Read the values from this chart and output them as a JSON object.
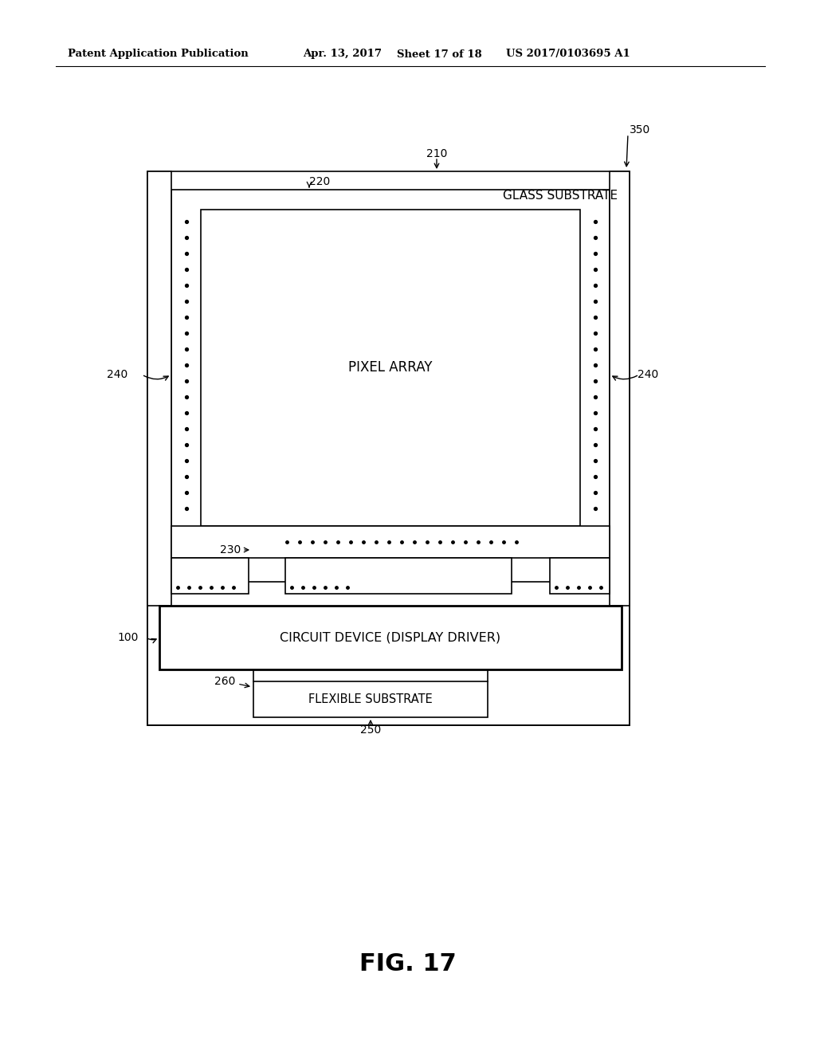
{
  "bg_color": "#ffffff",
  "header_left": "Patent Application Publication",
  "header_mid1": "Apr. 13, 2017",
  "header_mid2": "Sheet 17 of 18",
  "header_right": "US 2017/0103695 A1",
  "fig_label": "FIG. 17",
  "lbl_glass": "GLASS SUBSTRATE",
  "lbl_pixel": "PIXEL ARRAY",
  "lbl_circuit": "CIRCUIT DEVICE (DISPLAY DRIVER)",
  "lbl_flexible": "FLEXIBLE SUBSTRATE",
  "ref_350": "350",
  "ref_210": "210",
  "ref_220": "220",
  "ref_240": "240",
  "ref_230": "230",
  "ref_100": "100",
  "ref_260": "260",
  "ref_250": "250"
}
